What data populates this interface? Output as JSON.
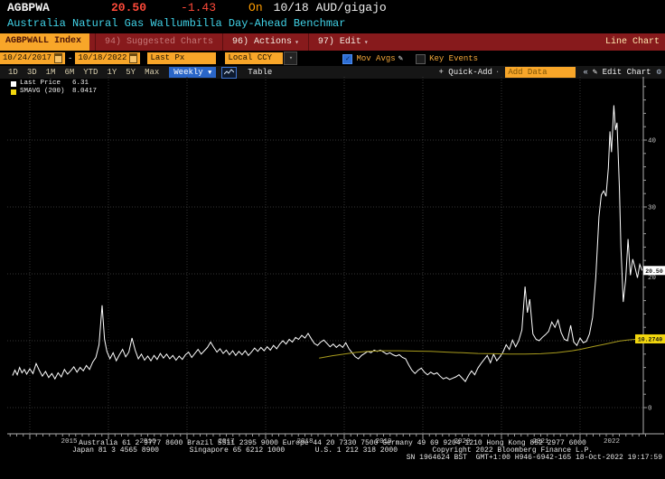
{
  "header": {
    "ticker": "AGBPWA",
    "price": "20.50",
    "change": "-1.43",
    "on_label": "On",
    "date": "10/18",
    "unit": "AUD/gigajo",
    "description": "Australia Natural Gas Wallumbilla Day-Ahead Benchmar"
  },
  "command_bar": {
    "security_tab": "AGBPWALL Index",
    "suggested_charts": "94) Suggested Charts",
    "actions": "96) Actions",
    "edit": "97) Edit",
    "caret": "▾",
    "chart_type_label": "Line Chart"
  },
  "toolbar": {
    "date_from": "10/24/2017",
    "date_to": "10/18/2022",
    "price_field": "Last Px",
    "currency": "Local CCY",
    "mov_avgs_label": "Mov Avgs",
    "mov_avgs_check": "✓",
    "key_events_label": "Key Events"
  },
  "period_bar": {
    "ranges": [
      "1D",
      "3D",
      "1M",
      "6M",
      "YTD",
      "1Y",
      "5Y",
      "Max"
    ],
    "frequency": "Weekly",
    "frequency_caret": "▼",
    "table_label": "Table",
    "quick_add_label": "+ Quick-Add",
    "quick_add_dot": "·",
    "add_data_placeholder": "Add Data",
    "collapse_icon": "«",
    "edit_pencil": "✎",
    "edit_chart_label": "Edit Chart",
    "gear": "⚙"
  },
  "legend": {
    "items": [
      {
        "label": "Last Price",
        "value": "6.31",
        "color": "#ffffff"
      },
      {
        "label": "SMAVG (200)",
        "value": "8.0417",
        "color": "#f2d70e"
      }
    ]
  },
  "chart_data": {
    "type": "line",
    "x_axis": {
      "labels": [
        "2015",
        "2016",
        "2017",
        "2018",
        "2019",
        "2020",
        "2021",
        "2022"
      ],
      "range": [
        2014.75,
        2022.83
      ]
    },
    "y_axis": {
      "ticks": [
        0,
        10,
        20,
        30,
        40
      ],
      "minor_step": 2,
      "range": [
        0,
        50
      ]
    },
    "series": [
      {
        "name": "Last Price",
        "color": "#ffffff",
        "badge_text": "20.50",
        "badge_value": 20.5,
        "badge_bg": "#ffffff",
        "points": [
          [
            2014.78,
            4.8
          ],
          [
            2014.81,
            5.6
          ],
          [
            2014.84,
            4.9
          ],
          [
            2014.87,
            6.0
          ],
          [
            2014.9,
            5.2
          ],
          [
            2014.93,
            5.7
          ],
          [
            2014.96,
            5.0
          ],
          [
            2015.0,
            5.8
          ],
          [
            2015.04,
            5.1
          ],
          [
            2015.08,
            6.6
          ],
          [
            2015.12,
            5.6
          ],
          [
            2015.16,
            4.7
          ],
          [
            2015.2,
            5.4
          ],
          [
            2015.24,
            4.5
          ],
          [
            2015.28,
            5.1
          ],
          [
            2015.32,
            4.3
          ],
          [
            2015.36,
            5.2
          ],
          [
            2015.4,
            4.6
          ],
          [
            2015.44,
            5.7
          ],
          [
            2015.48,
            5.0
          ],
          [
            2015.52,
            5.5
          ],
          [
            2015.56,
            6.1
          ],
          [
            2015.6,
            5.3
          ],
          [
            2015.64,
            6.0
          ],
          [
            2015.68,
            5.5
          ],
          [
            2015.72,
            6.3
          ],
          [
            2015.76,
            5.7
          ],
          [
            2015.8,
            6.8
          ],
          [
            2015.84,
            7.5
          ],
          [
            2015.88,
            9.4
          ],
          [
            2015.92,
            15.3
          ],
          [
            2015.95,
            10.2
          ],
          [
            2015.98,
            8.4
          ],
          [
            2016.02,
            7.3
          ],
          [
            2016.06,
            8.2
          ],
          [
            2016.1,
            7.0
          ],
          [
            2016.14,
            7.9
          ],
          [
            2016.18,
            8.7
          ],
          [
            2016.22,
            7.6
          ],
          [
            2016.26,
            8.3
          ],
          [
            2016.3,
            10.4
          ],
          [
            2016.34,
            8.6
          ],
          [
            2016.38,
            7.3
          ],
          [
            2016.42,
            8.0
          ],
          [
            2016.46,
            7.1
          ],
          [
            2016.5,
            7.7
          ],
          [
            2016.54,
            7.0
          ],
          [
            2016.58,
            7.8
          ],
          [
            2016.62,
            7.2
          ],
          [
            2016.66,
            8.1
          ],
          [
            2016.7,
            7.4
          ],
          [
            2016.74,
            8.0
          ],
          [
            2016.78,
            7.3
          ],
          [
            2016.82,
            7.8
          ],
          [
            2016.86,
            7.1
          ],
          [
            2016.9,
            7.7
          ],
          [
            2016.94,
            7.2
          ],
          [
            2016.98,
            7.9
          ],
          [
            2017.02,
            8.3
          ],
          [
            2017.06,
            7.5
          ],
          [
            2017.1,
            8.1
          ],
          [
            2017.14,
            8.7
          ],
          [
            2017.18,
            8.0
          ],
          [
            2017.22,
            8.5
          ],
          [
            2017.26,
            9.0
          ],
          [
            2017.3,
            9.8
          ],
          [
            2017.34,
            9.0
          ],
          [
            2017.38,
            8.3
          ],
          [
            2017.42,
            8.8
          ],
          [
            2017.46,
            8.1
          ],
          [
            2017.5,
            8.6
          ],
          [
            2017.54,
            7.9
          ],
          [
            2017.58,
            8.5
          ],
          [
            2017.62,
            7.8
          ],
          [
            2017.66,
            8.4
          ],
          [
            2017.7,
            7.9
          ],
          [
            2017.74,
            8.5
          ],
          [
            2017.78,
            7.8
          ],
          [
            2017.82,
            8.3
          ],
          [
            2017.86,
            8.9
          ],
          [
            2017.9,
            8.4
          ],
          [
            2017.94,
            9.0
          ],
          [
            2017.98,
            8.5
          ],
          [
            2018.02,
            9.1
          ],
          [
            2018.06,
            8.6
          ],
          [
            2018.1,
            9.3
          ],
          [
            2018.14,
            8.8
          ],
          [
            2018.18,
            9.5
          ],
          [
            2018.22,
            10.0
          ],
          [
            2018.26,
            9.5
          ],
          [
            2018.3,
            10.2
          ],
          [
            2018.34,
            9.8
          ],
          [
            2018.38,
            10.5
          ],
          [
            2018.42,
            10.2
          ],
          [
            2018.46,
            10.8
          ],
          [
            2018.5,
            10.4
          ],
          [
            2018.54,
            11.1
          ],
          [
            2018.58,
            10.3
          ],
          [
            2018.62,
            9.6
          ],
          [
            2018.66,
            9.3
          ],
          [
            2018.7,
            9.8
          ],
          [
            2018.74,
            10.1
          ],
          [
            2018.78,
            9.6
          ],
          [
            2018.82,
            9.1
          ],
          [
            2018.86,
            9.5
          ],
          [
            2018.9,
            9.0
          ],
          [
            2018.94,
            9.4
          ],
          [
            2018.98,
            9.0
          ],
          [
            2019.02,
            9.7
          ],
          [
            2019.06,
            8.8
          ],
          [
            2019.1,
            8.2
          ],
          [
            2019.14,
            7.6
          ],
          [
            2019.18,
            7.3
          ],
          [
            2019.22,
            7.8
          ],
          [
            2019.26,
            8.1
          ],
          [
            2019.3,
            8.4
          ],
          [
            2019.34,
            8.2
          ],
          [
            2019.38,
            8.6
          ],
          [
            2019.42,
            8.4
          ],
          [
            2019.46,
            8.6
          ],
          [
            2019.5,
            8.3
          ],
          [
            2019.54,
            8.0
          ],
          [
            2019.58,
            8.2
          ],
          [
            2019.62,
            7.9
          ],
          [
            2019.66,
            7.7
          ],
          [
            2019.7,
            7.9
          ],
          [
            2019.74,
            7.5
          ],
          [
            2019.78,
            7.3
          ],
          [
            2019.82,
            6.4
          ],
          [
            2019.86,
            5.6
          ],
          [
            2019.9,
            5.1
          ],
          [
            2019.94,
            5.6
          ],
          [
            2019.98,
            5.9
          ],
          [
            2020.02,
            5.3
          ],
          [
            2020.06,
            4.9
          ],
          [
            2020.1,
            5.3
          ],
          [
            2020.14,
            5.0
          ],
          [
            2020.18,
            5.2
          ],
          [
            2020.22,
            4.7
          ],
          [
            2020.26,
            4.3
          ],
          [
            2020.3,
            4.5
          ],
          [
            2020.34,
            4.2
          ],
          [
            2020.38,
            4.4
          ],
          [
            2020.42,
            4.6
          ],
          [
            2020.46,
            4.9
          ],
          [
            2020.5,
            4.4
          ],
          [
            2020.54,
            3.9
          ],
          [
            2020.58,
            4.8
          ],
          [
            2020.62,
            5.5
          ],
          [
            2020.66,
            4.9
          ],
          [
            2020.7,
            5.9
          ],
          [
            2020.74,
            6.6
          ],
          [
            2020.78,
            7.2
          ],
          [
            2020.82,
            7.8
          ],
          [
            2020.86,
            6.7
          ],
          [
            2020.9,
            8.0
          ],
          [
            2020.94,
            7.0
          ],
          [
            2020.98,
            7.6
          ],
          [
            2021.02,
            8.3
          ],
          [
            2021.06,
            9.4
          ],
          [
            2021.1,
            8.7
          ],
          [
            2021.14,
            10.1
          ],
          [
            2021.18,
            9.1
          ],
          [
            2021.22,
            10.0
          ],
          [
            2021.26,
            11.6
          ],
          [
            2021.3,
            18.1
          ],
          [
            2021.33,
            14.2
          ],
          [
            2021.36,
            16.2
          ],
          [
            2021.4,
            11.0
          ],
          [
            2021.44,
            10.2
          ],
          [
            2021.48,
            10.0
          ],
          [
            2021.52,
            10.5
          ],
          [
            2021.56,
            10.9
          ],
          [
            2021.6,
            11.4
          ],
          [
            2021.64,
            12.8
          ],
          [
            2021.68,
            12.0
          ],
          [
            2021.72,
            13.1
          ],
          [
            2021.76,
            11.2
          ],
          [
            2021.8,
            10.2
          ],
          [
            2021.84,
            10.0
          ],
          [
            2021.88,
            12.3
          ],
          [
            2021.92,
            9.8
          ],
          [
            2021.96,
            9.3
          ],
          [
            2022.0,
            10.4
          ],
          [
            2022.04,
            9.7
          ],
          [
            2022.08,
            9.9
          ],
          [
            2022.12,
            11.0
          ],
          [
            2022.16,
            13.5
          ],
          [
            2022.2,
            19.5
          ],
          [
            2022.24,
            28.5
          ],
          [
            2022.27,
            31.8
          ],
          [
            2022.3,
            32.4
          ],
          [
            2022.33,
            31.6
          ],
          [
            2022.36,
            35.8
          ],
          [
            2022.38,
            41.3
          ],
          [
            2022.4,
            38.2
          ],
          [
            2022.43,
            45.2
          ],
          [
            2022.45,
            41.5
          ],
          [
            2022.47,
            42.6
          ],
          [
            2022.5,
            33.0
          ],
          [
            2022.52,
            24.0
          ],
          [
            2022.55,
            15.8
          ],
          [
            2022.58,
            19.2
          ],
          [
            2022.61,
            25.2
          ],
          [
            2022.64,
            19.8
          ],
          [
            2022.67,
            22.2
          ],
          [
            2022.7,
            20.9
          ],
          [
            2022.73,
            19.4
          ],
          [
            2022.76,
            21.4
          ],
          [
            2022.79,
            20.5
          ]
        ]
      },
      {
        "name": "SMAVG (200)",
        "color": "#a89b1d",
        "badge_text": "10.2740",
        "badge_value": 10.274,
        "badge_bg": "#f2d70e",
        "points": [
          [
            2018.68,
            7.4
          ],
          [
            2018.85,
            7.75
          ],
          [
            2019.0,
            8.0
          ],
          [
            2019.15,
            8.25
          ],
          [
            2019.3,
            8.4
          ],
          [
            2019.5,
            8.5
          ],
          [
            2019.7,
            8.5
          ],
          [
            2019.9,
            8.45
          ],
          [
            2020.1,
            8.4
          ],
          [
            2020.3,
            8.3
          ],
          [
            2020.5,
            8.2
          ],
          [
            2020.7,
            8.1
          ],
          [
            2020.9,
            8.05
          ],
          [
            2021.1,
            8.0
          ],
          [
            2021.3,
            8.0
          ],
          [
            2021.5,
            8.05
          ],
          [
            2021.7,
            8.2
          ],
          [
            2021.9,
            8.5
          ],
          [
            2022.0,
            8.7
          ],
          [
            2022.1,
            8.95
          ],
          [
            2022.2,
            9.2
          ],
          [
            2022.3,
            9.45
          ],
          [
            2022.4,
            9.7
          ],
          [
            2022.5,
            9.95
          ],
          [
            2022.6,
            10.1
          ],
          [
            2022.7,
            10.2
          ],
          [
            2022.79,
            10.27
          ]
        ]
      }
    ]
  },
  "footer": {
    "line1": "Australia 61 2 9777 8600 Brazil 5511 2395 9000 Europe 44 20 7330 7500 Germany 49 69 9204 1210 Hong Kong 852 2977 6000",
    "line2": "Japan 81 3 4565 8900       Singapore 65 6212 1000       U.S. 1 212 318 2000        Copyright 2022 Bloomberg Finance L.P.",
    "line3": "SN 1964624 BST  GMT+1:00 H946-6942-165 18-Oct-2022 19:17:59"
  }
}
